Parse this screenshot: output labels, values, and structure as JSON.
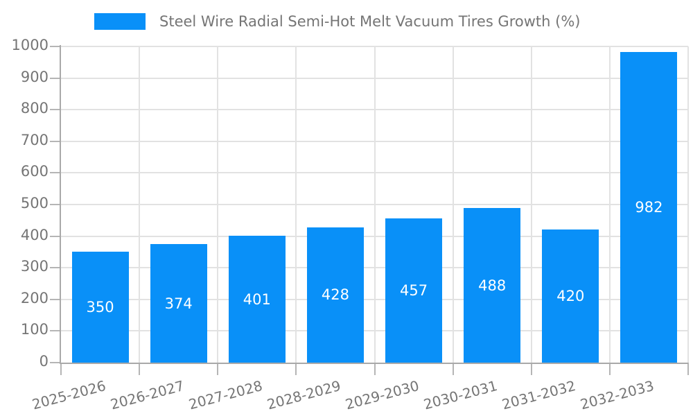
{
  "legend": {
    "label": "Steel Wire Radial Semi-Hot Melt Vacuum Tires Growth (%)"
  },
  "chart_data": {
    "type": "bar",
    "title": "Steel Wire Radial Semi-Hot Melt Vacuum Tires Growth (%)",
    "categories": [
      "2025-2026",
      "2026-2027",
      "2027-2028",
      "2028-2029",
      "2029-2030",
      "2030-2031",
      "2031-2032",
      "2032-2033"
    ],
    "values": [
      350,
      374,
      401,
      428,
      457,
      488,
      420,
      982
    ],
    "value_labels": [
      "350",
      "374",
      "401",
      "428",
      "457",
      "488",
      "420",
      "982"
    ],
    "y_tick_labels": [
      "0",
      "100",
      "200",
      "300",
      "400",
      "500",
      "600",
      "700",
      "800",
      "900",
      "1000"
    ],
    "xlabel": "",
    "ylabel": "",
    "ylim": [
      0,
      1000
    ],
    "ytick_step": 100,
    "grid": true,
    "legend_position": "top",
    "colors": {
      "bar": "#0990F8",
      "value_label": "#FFFFFF",
      "axis_text": "#757575",
      "grid_line": "#E2E2E2",
      "axis_line": "#A9A9A9",
      "tick_mark": "#B5B5B5"
    }
  }
}
